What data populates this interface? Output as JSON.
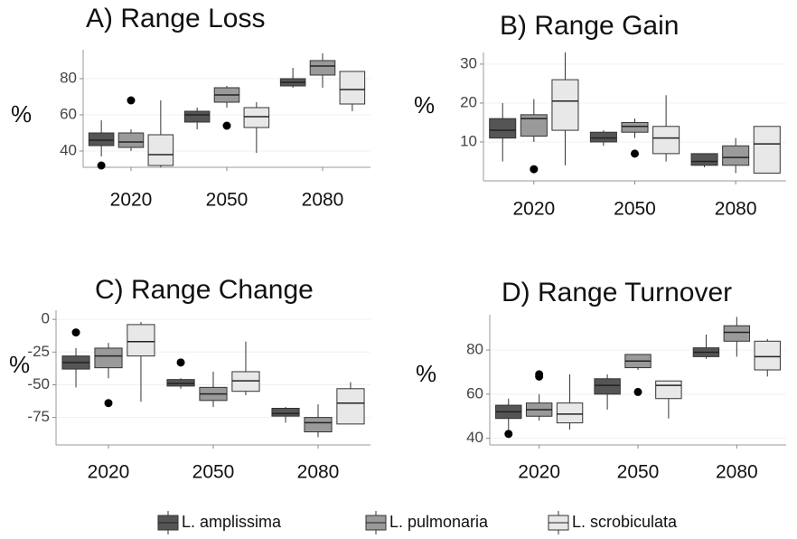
{
  "legend": [
    {
      "name": "L. amplissima",
      "color": "#555555"
    },
    {
      "name": "L. pulmonaria",
      "color": "#9a9a9a"
    },
    {
      "name": "L. scrobiculata",
      "color": "#e8e8e8"
    }
  ],
  "chart_data": [
    {
      "type": "box",
      "title": "A) Range Loss",
      "ylabel": "%",
      "categories": [
        "2020",
        "2050",
        "2080"
      ],
      "ylim": [
        31,
        96
      ],
      "yticks": [
        40,
        60,
        80
      ],
      "series": [
        {
          "values": [
            {
              "min": 37,
              "q1": 43,
              "median": 46,
              "q3": 50,
              "max": 57,
              "outliers": [
                32
              ]
            },
            {
              "min": 52,
              "q1": 56,
              "median": 60,
              "q3": 62,
              "max": 64
            },
            {
              "min": 75,
              "q1": 76,
              "median": 78,
              "q3": 80,
              "max": 86
            }
          ]
        },
        {
          "values": [
            {
              "min": 40,
              "q1": 42,
              "median": 45,
              "q3": 50,
              "max": 52,
              "outliers": [
                68
              ]
            },
            {
              "min": 64,
              "q1": 67,
              "median": 71,
              "q3": 75,
              "max": 76,
              "outliers": [
                54
              ]
            },
            {
              "min": 75,
              "q1": 82,
              "median": 87,
              "q3": 90,
              "max": 94
            }
          ]
        },
        {
          "values": [
            {
              "min": 31,
              "q1": 32,
              "median": 38,
              "q3": 49,
              "max": 68
            },
            {
              "min": 39,
              "q1": 53,
              "median": 59,
              "q3": 64,
              "max": 67
            },
            {
              "min": 62,
              "q1": 66,
              "median": 74,
              "q3": 84,
              "max": 84
            }
          ]
        }
      ]
    },
    {
      "type": "box",
      "title": "B) Range Gain",
      "ylabel": "%",
      "categories": [
        "2020",
        "2050",
        "2080"
      ],
      "ylim": [
        0,
        33
      ],
      "yticks": [
        10,
        20,
        30
      ],
      "series": [
        {
          "values": [
            {
              "min": 5,
              "q1": 11,
              "median": 13,
              "q3": 16,
              "max": 20
            },
            {
              "min": 9,
              "q1": 10,
              "median": 11,
              "q3": 12.5,
              "max": 13
            },
            {
              "min": 3.5,
              "q1": 4,
              "median": 5,
              "q3": 7,
              "max": 7
            }
          ]
        },
        {
          "values": [
            {
              "min": 10,
              "q1": 11.5,
              "median": 16,
              "q3": 17,
              "max": 21,
              "outliers": [
                3
              ]
            },
            {
              "min": 11,
              "q1": 12.5,
              "median": 14,
              "q3": 15,
              "max": 16,
              "outliers": [
                7
              ]
            },
            {
              "min": 2,
              "q1": 4,
              "median": 6,
              "q3": 9,
              "max": 11
            }
          ]
        },
        {
          "values": [
            {
              "min": 4,
              "q1": 13,
              "median": 20.5,
              "q3": 26,
              "max": 33
            },
            {
              "min": 5,
              "q1": 7,
              "median": 11,
              "q3": 14,
              "max": 22
            },
            {
              "min": 2,
              "q1": 2,
              "median": 9.5,
              "q3": 14,
              "max": 14
            }
          ]
        }
      ]
    },
    {
      "type": "box",
      "title": "C) Range Change",
      "ylabel": "%",
      "categories": [
        "2020",
        "2050",
        "2080"
      ],
      "ylim": [
        -96,
        7
      ],
      "yticks": [
        0,
        -25,
        -50,
        -75
      ],
      "series": [
        {
          "values": [
            {
              "min": -52,
              "q1": -38,
              "median": -33,
              "q3": -28,
              "max": -22,
              "outliers": [
                -10
              ]
            },
            {
              "min": -53,
              "q1": -51,
              "median": -49,
              "q3": -46,
              "max": -45,
              "outliers": [
                -33
              ]
            },
            {
              "min": -79,
              "q1": -74,
              "median": -72,
              "q3": -68,
              "max": -67
            }
          ]
        },
        {
          "values": [
            {
              "min": -45,
              "q1": -37,
              "median": -28,
              "q3": -22,
              "max": -18,
              "outliers": [
                -64
              ]
            },
            {
              "min": -67,
              "q1": -62,
              "median": -57,
              "q3": -52,
              "max": -40
            },
            {
              "min": -90,
              "q1": -86,
              "median": -79,
              "q3": -75,
              "max": -65
            }
          ]
        },
        {
          "values": [
            {
              "min": -63,
              "q1": -28,
              "median": -17,
              "q3": -4,
              "max": -2
            },
            {
              "min": -58,
              "q1": -55,
              "median": -47,
              "q3": -40,
              "max": -17
            },
            {
              "min": -80,
              "q1": -80,
              "median": -64,
              "q3": -53,
              "max": -48
            }
          ]
        }
      ]
    },
    {
      "type": "box",
      "title": "D) Range Turnover",
      "ylabel": "%",
      "categories": [
        "2020",
        "2050",
        "2080"
      ],
      "ylim": [
        37,
        96
      ],
      "yticks": [
        40,
        60,
        80
      ],
      "series": [
        {
          "values": [
            {
              "min": 44,
              "q1": 49,
              "median": 52,
              "q3": 55,
              "max": 58,
              "outliers": [
                42
              ]
            },
            {
              "min": 53,
              "q1": 60,
              "median": 64,
              "q3": 67,
              "max": 69
            },
            {
              "min": 76,
              "q1": 77,
              "median": 79,
              "q3": 81,
              "max": 87
            }
          ]
        },
        {
          "values": [
            {
              "min": 48,
              "q1": 50,
              "median": 53,
              "q3": 56,
              "max": 60,
              "outliers": [
                68,
                69
              ]
            },
            {
              "min": 71,
              "q1": 72,
              "median": 75,
              "q3": 78,
              "max": 78,
              "outliers": [
                61
              ]
            },
            {
              "min": 77,
              "q1": 84,
              "median": 88,
              "q3": 91,
              "max": 95
            }
          ]
        },
        {
          "values": [
            {
              "min": 44,
              "q1": 47,
              "median": 51,
              "q3": 56,
              "max": 69
            },
            {
              "min": 49,
              "q1": 58,
              "median": 64,
              "q3": 66,
              "max": 66
            },
            {
              "min": 68,
              "q1": 71,
              "median": 77,
              "q3": 84,
              "max": 85
            }
          ]
        }
      ]
    }
  ]
}
